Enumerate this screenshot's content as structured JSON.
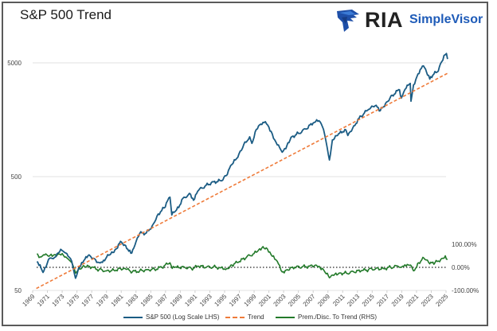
{
  "header": {
    "title": "S&P 500 Trend",
    "logo_mark": "RIA",
    "logo_text": "SimpleVisor",
    "logo_icon": "eagle-icon"
  },
  "colors": {
    "sp500": "#1b5c84",
    "trend": "#ef7b3a",
    "premium": "#237a2a",
    "grid": "#e0e0e0",
    "zero_line": "#222222",
    "logo_blue": "#1e5bb8"
  },
  "chart_data": {
    "type": "line",
    "title": "S&P 500 Trend",
    "xlabel": "",
    "ylabel_left": "",
    "ylabel_right": "",
    "x_range": [
      1969,
      2025
    ],
    "y_left": {
      "scale": "log",
      "range": [
        50,
        5000
      ],
      "ticks": [
        "5000",
        "500",
        "50"
      ],
      "tick_values": [
        5000,
        500,
        50
      ]
    },
    "y_right": {
      "scale": "linear",
      "range": [
        -100,
        100
      ],
      "ticks": [
        "100.00%",
        "0.00%",
        "-100.00%"
      ],
      "tick_values": [
        100,
        0,
        -100
      ]
    },
    "x_ticks": [
      "1969",
      "1971",
      "1973",
      "1975",
      "1977",
      "1979",
      "1981",
      "1983",
      "1985",
      "1987",
      "1989",
      "1991",
      "1993",
      "1995",
      "1997",
      "1999",
      "2001",
      "2003",
      "2005",
      "2007",
      "2009",
      "2011",
      "2013",
      "2015",
      "2017",
      "2019",
      "2021",
      "2023",
      "2025"
    ],
    "grid": true,
    "legend_position": "bottom",
    "series": [
      {
        "name": "S&P 500 (Log Scale LHS)",
        "axis": "left",
        "style": "solid",
        "x": [
          1969.6,
          1970.0,
          1970.4,
          1970.8,
          1971.3,
          1971.8,
          1972.3,
          1972.8,
          1973.3,
          1973.8,
          1974.3,
          1974.8,
          1975.2,
          1975.8,
          1976.5,
          1977.2,
          1978.0,
          1978.6,
          1979.3,
          1980.0,
          1980.5,
          1980.9,
          1981.6,
          1982.3,
          1982.7,
          1983.5,
          1984.4,
          1985.2,
          1986.0,
          1986.8,
          1987.6,
          1987.85,
          1988.5,
          1989.5,
          1990.4,
          1990.8,
          1991.5,
          1992.5,
          1993.5,
          1994.5,
          1995.2,
          1996.0,
          1996.8,
          1997.6,
          1998.4,
          1998.7,
          1999.3,
          2000.2,
          2000.7,
          2001.3,
          2001.8,
          2002.3,
          2002.8,
          2003.3,
          2004.0,
          2005.0,
          2006.0,
          2007.0,
          2007.8,
          2008.4,
          2008.9,
          2009.2,
          2009.6,
          2010.3,
          2011.3,
          2011.7,
          2012.5,
          2013.5,
          2014.5,
          2015.4,
          2016.1,
          2016.8,
          2017.7,
          2018.7,
          2018.95,
          2019.6,
          2020.15,
          2020.25,
          2020.6,
          2021.2,
          2021.95,
          2022.5,
          2022.8,
          2023.5,
          2023.8,
          2024.4,
          2024.9,
          2025.05,
          2025.2
        ],
        "values": [
          90,
          84,
          72,
          80,
          96,
          95,
          105,
          115,
          108,
          100,
          90,
          64,
          78,
          88,
          101,
          96,
          88,
          92,
          102,
          108,
          118,
          135,
          124,
          106,
          118,
          158,
          160,
          185,
          235,
          265,
          330,
          230,
          255,
          330,
          350,
          310,
          380,
          420,
          450,
          460,
          510,
          640,
          740,
          960,
          1120,
          980,
          1300,
          1500,
          1450,
          1250,
          1050,
          950,
          820,
          880,
          1110,
          1200,
          1310,
          1480,
          1550,
          1300,
          900,
          700,
          1050,
          1150,
          1300,
          1150,
          1400,
          1700,
          1950,
          2100,
          1900,
          2200,
          2600,
          2900,
          2450,
          3000,
          3300,
          2300,
          3200,
          4000,
          4700,
          3900,
          3600,
          4200,
          4150,
          5100,
          5900,
          6050,
          5400
        ]
      },
      {
        "name": "Trend",
        "axis": "left",
        "style": "dashed",
        "x": [
          1969.5,
          2025.2
        ],
        "values": [
          52,
          4050
        ]
      },
      {
        "name": "Prem./Disc. To Trend (RHS)",
        "axis": "right",
        "style": "solid",
        "x": [
          1969.6,
          1970.0,
          1970.5,
          1971.2,
          1971.8,
          1972.5,
          1973.0,
          1973.5,
          1974.0,
          1974.5,
          1974.8,
          1975.3,
          1976.0,
          1977.0,
          1978.0,
          1979.0,
          1980.0,
          1980.9,
          1981.5,
          1982.5,
          1983.5,
          1984.5,
          1985.5,
          1986.5,
          1987.6,
          1987.9,
          1988.5,
          1989.5,
          1990.5,
          1991.5,
          1992.5,
          1993.5,
          1994.5,
          1995.3,
          1996.0,
          1997.0,
          1998.0,
          1999.0,
          1999.6,
          2000.2,
          2000.8,
          2001.3,
          2001.8,
          2002.3,
          2002.8,
          2003.5,
          2004.5,
          2005.5,
          2006.5,
          2007.3,
          2007.8,
          2008.5,
          2009.2,
          2009.8,
          2010.5,
          2011.5,
          2012.5,
          2013.5,
          2014.5,
          2015.5,
          2016.5,
          2017.5,
          2018.5,
          2018.95,
          2019.6,
          2020.2,
          2020.6,
          2021.3,
          2022.0,
          2022.8,
          2023.5,
          2024.3,
          2024.9,
          2025.2
        ],
        "values": [
          60,
          45,
          55,
          48,
          52,
          58,
          60,
          45,
          30,
          5,
          -25,
          -5,
          5,
          0,
          -10,
          -15,
          -12,
          -5,
          -5,
          -20,
          -15,
          -10,
          -8,
          0,
          20,
          -5,
          0,
          2,
          -5,
          5,
          0,
          2,
          -2,
          -5,
          10,
          25,
          45,
          60,
          75,
          90,
          80,
          55,
          35,
          15,
          -20,
          -10,
          0,
          2,
          5,
          10,
          5,
          -15,
          -45,
          -35,
          -25,
          -25,
          -20,
          -15,
          -10,
          -5,
          -5,
          0,
          5,
          0,
          5,
          10,
          -15,
          20,
          40,
          15,
          20,
          35,
          50,
          35
        ]
      }
    ]
  },
  "legend": [
    {
      "label": "S&P 500 (Log Scale LHS)"
    },
    {
      "label": "Trend"
    },
    {
      "label": "Prem./Disc. To Trend (RHS)"
    }
  ]
}
